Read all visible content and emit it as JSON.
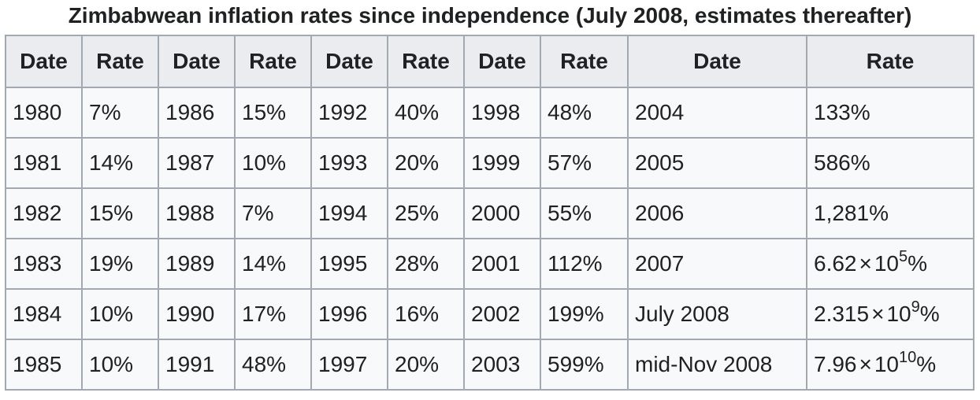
{
  "caption": "Zimbabwean inflation rates since independence (July 2008, estimates thereafter)",
  "headers": [
    "Date",
    "Rate",
    "Date",
    "Rate",
    "Date",
    "Rate",
    "Date",
    "Rate",
    "Date",
    "Rate"
  ],
  "rows": [
    {
      "c0": {
        "date": "1980",
        "rate": "7%"
      },
      "c1": {
        "date": "1986",
        "rate": "15%"
      },
      "c2": {
        "date": "1992",
        "rate": "40%"
      },
      "c3": {
        "date": "1998",
        "rate": "48%"
      },
      "c4": {
        "date": "2004",
        "rate": "133%"
      }
    },
    {
      "c0": {
        "date": "1981",
        "rate": "14%"
      },
      "c1": {
        "date": "1987",
        "rate": "10%"
      },
      "c2": {
        "date": "1993",
        "rate": "20%"
      },
      "c3": {
        "date": "1999",
        "rate": "57%"
      },
      "c4": {
        "date": "2005",
        "rate": "586%"
      }
    },
    {
      "c0": {
        "date": "1982",
        "rate": "15%"
      },
      "c1": {
        "date": "1988",
        "rate": "7%"
      },
      "c2": {
        "date": "1994",
        "rate": "25%"
      },
      "c3": {
        "date": "2000",
        "rate": "55%"
      },
      "c4": {
        "date": "2006",
        "rate": "1,281%"
      }
    },
    {
      "c0": {
        "date": "1983",
        "rate": "19%"
      },
      "c1": {
        "date": "1989",
        "rate": "14%"
      },
      "c2": {
        "date": "1995",
        "rate": "28%"
      },
      "c3": {
        "date": "2001",
        "rate": "112%"
      },
      "c4": {
        "date": "2007",
        "rate_mantissa": "6.62",
        "rate_times": "×",
        "rate_base": "10",
        "rate_exp": "5",
        "rate_suffix": "%"
      }
    },
    {
      "c0": {
        "date": "1984",
        "rate": "10%"
      },
      "c1": {
        "date": "1990",
        "rate": "17%"
      },
      "c2": {
        "date": "1996",
        "rate": "16%"
      },
      "c3": {
        "date": "2002",
        "rate": "199%"
      },
      "c4": {
        "date": "July 2008",
        "rate_mantissa": "2.315",
        "rate_times": "×",
        "rate_base": "10",
        "rate_exp": "9",
        "rate_suffix": "%"
      }
    },
    {
      "c0": {
        "date": "1985",
        "rate": "10%"
      },
      "c1": {
        "date": "1991",
        "rate": "48%"
      },
      "c2": {
        "date": "1997",
        "rate": "20%"
      },
      "c3": {
        "date": "2003",
        "rate": "599%"
      },
      "c4": {
        "date": "mid-Nov 2008",
        "rate_mantissa": "7.96",
        "rate_times": "×",
        "rate_base": "10",
        "rate_exp": "10",
        "rate_suffix": "%"
      }
    }
  ]
}
